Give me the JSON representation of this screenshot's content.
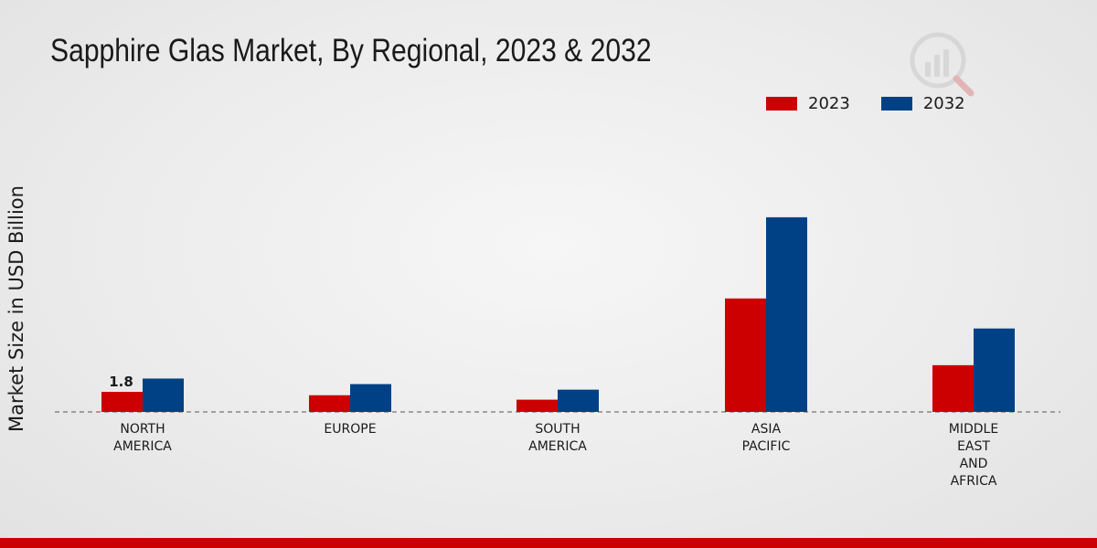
{
  "chart_data": {
    "type": "bar",
    "title": "Sapphire Glas Market, By Regional, 2023 & 2032",
    "xlabel": "",
    "ylabel": "Market Size in USD Billion",
    "categories": [
      [
        "NORTH",
        "AMERICA"
      ],
      [
        "EUROPE"
      ],
      [
        "SOUTH",
        "AMERICA"
      ],
      [
        "ASIA",
        "PACIFIC"
      ],
      [
        "MIDDLE",
        "EAST",
        "AND",
        "AFRICA"
      ]
    ],
    "series": [
      {
        "name": "2023",
        "color": "#cc0000",
        "values": [
          1.8,
          1.5,
          1.1,
          10.2,
          4.2
        ]
      },
      {
        "name": "2032",
        "color": "#004185",
        "values": [
          3.0,
          2.5,
          2.0,
          17.5,
          7.5
        ]
      }
    ],
    "data_labels": [
      {
        "series": 0,
        "category": 0,
        "text": "1.8"
      }
    ],
    "ylim": [
      0,
      28
    ],
    "grid": false,
    "baseline": "dashed",
    "legend_position": "top-right"
  }
}
